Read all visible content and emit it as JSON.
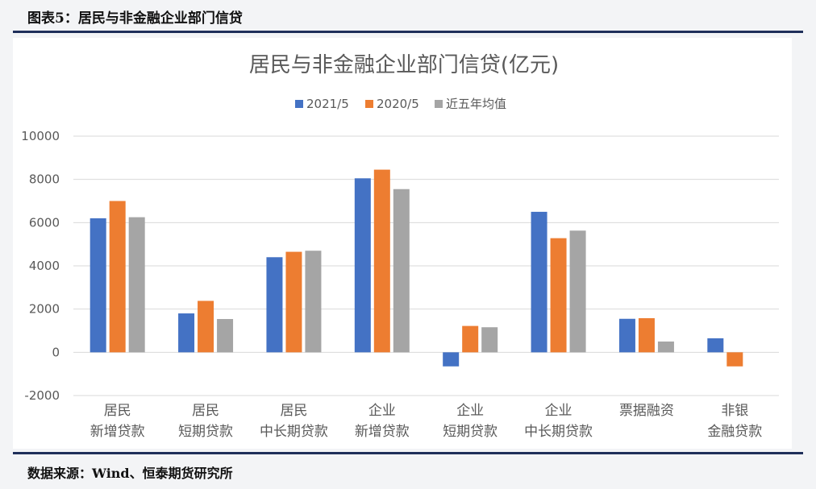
{
  "figure_caption": "图表5：居民与非金融企业部门信贷",
  "source_note": "数据来源：Wind、恒泰期货研究所",
  "colors": {
    "s2021": "#4472C4",
    "s2020": "#ED7D31",
    "s5y": "#A5A5A5",
    "grid": "#D9D9D9",
    "text": "#595959"
  },
  "chart_data": {
    "type": "bar",
    "title": "居民与非金融企业部门信贷(亿元)",
    "xlabel": "",
    "ylabel": "",
    "ylim": [
      -2000,
      10000
    ],
    "yticks": [
      -2000,
      0,
      2000,
      4000,
      6000,
      8000,
      10000
    ],
    "grid": true,
    "legend_position": "top-center",
    "categories": [
      [
        "居民",
        "新增贷款"
      ],
      [
        "居民",
        "短期贷款"
      ],
      [
        "居民",
        "中长期贷款"
      ],
      [
        "企业",
        "新增贷款"
      ],
      [
        "企业",
        "短期贷款"
      ],
      [
        "企业",
        "中长期贷款"
      ],
      [
        "票据融资"
      ],
      [
        "非银",
        "金融贷款"
      ]
    ],
    "series": [
      {
        "name": "2021/5",
        "color": "#4472C4",
        "values": [
          6200,
          1800,
          4400,
          8050,
          -650,
          6500,
          1550,
          650
        ]
      },
      {
        "name": "2020/5",
        "color": "#ED7D31",
        "values": [
          7000,
          2380,
          4650,
          8450,
          1220,
          5280,
          1580,
          -650
        ]
      },
      {
        "name": "近五年均值",
        "color": "#A5A5A5",
        "values": [
          6250,
          1540,
          4700,
          7550,
          1160,
          5630,
          500,
          null
        ]
      }
    ]
  }
}
